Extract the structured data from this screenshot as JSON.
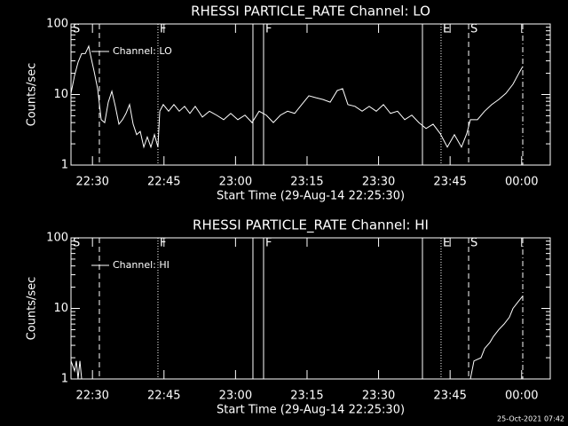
{
  "chart_data": [
    {
      "type": "line",
      "title": "RHESSI PARTICLE_RATE Channel: LO",
      "xlabel": "Start Time (29-Aug-14 22:25:30)",
      "ylabel": "Counts/sec",
      "log_y": true,
      "legend": "upper left",
      "x": [
        0,
        45,
        89,
        134,
        179,
        223,
        246,
        290,
        335,
        380,
        424,
        469,
        514,
        558,
        603,
        648,
        692,
        737,
        782,
        826,
        871,
        916,
        960,
        1005,
        1050,
        1094,
        1117,
        1161,
        1228,
        1295,
        1362,
        1429,
        1496,
        1563,
        1653,
        1742,
        1831,
        1921,
        2010,
        2099,
        2189,
        2278,
        2367,
        2457,
        2546,
        2635,
        2725,
        2814,
        2903,
        2993,
        3082,
        3171,
        3261,
        3350,
        3417,
        3484,
        3573,
        3663,
        3752,
        3841,
        3931,
        4020,
        4109,
        4199,
        4288,
        4377,
        4467,
        4556,
        4645,
        4735,
        4824,
        4913,
        4980,
        5025,
        5114,
        5204,
        5293,
        5382,
        5472,
        5561,
        5650,
        5684
      ],
      "series": [
        {
          "name": "Channel: LO",
          "color": "#ffffff",
          "values": [
            10.4,
            18.6,
            28.7,
            38,
            38,
            48.5,
            36,
            21.5,
            12.1,
            4.4,
            4.0,
            7.8,
            11.1,
            6.8,
            3.8,
            4.4,
            5.4,
            7.2,
            3.8,
            2.7,
            3.0,
            1.8,
            2.5,
            1.8,
            2.7,
            1.8,
            5.8,
            7.2,
            5.8,
            7.2,
            5.8,
            6.8,
            5.4,
            6.8,
            4.8,
            5.8,
            5.1,
            4.4,
            5.4,
            4.4,
            5.1,
            4.0,
            5.8,
            5.1,
            4.0,
            5.1,
            5.8,
            5.4,
            7.2,
            9.6,
            9.0,
            8.5,
            7.8,
            11.4,
            12.1,
            7.2,
            6.8,
            5.8,
            6.8,
            5.8,
            7.2,
            5.4,
            5.8,
            4.4,
            5.1,
            4.0,
            3.3,
            3.8,
            2.8,
            1.8,
            2.7,
            1.8,
            2.8,
            4.4,
            4.4,
            5.8,
            7.2,
            8.5,
            10.4,
            14.0,
            21.5,
            25
          ]
        }
      ],
      "xlim": [
        0,
        6030
      ],
      "ylim": [
        1,
        100
      ],
      "yticks": [
        1,
        10,
        100
      ],
      "xticks": [
        {
          "value": 270,
          "label": "22:30"
        },
        {
          "value": 1170,
          "label": "22:45"
        },
        {
          "value": 2070,
          "label": "23:00"
        },
        {
          "value": 2970,
          "label": "23:15"
        },
        {
          "value": 3870,
          "label": "23:30"
        },
        {
          "value": 4770,
          "label": "23:45"
        },
        {
          "value": 5670,
          "label": "00:00"
        }
      ],
      "markers": [
        {
          "x": 0,
          "label": "S",
          "style": "solid"
        },
        {
          "x": 357,
          "label": null,
          "style": "dashed"
        },
        {
          "x": 1094,
          "label": "F",
          "style": "dotted"
        },
        {
          "x": 2289,
          "label": null,
          "style": "solid"
        },
        {
          "x": 2423,
          "label": "F",
          "style": "solid"
        },
        {
          "x": 4422,
          "label": null,
          "style": "solid"
        },
        {
          "x": 4656,
          "label": "E",
          "style": "dotted"
        },
        {
          "x": 5003,
          "label": "S",
          "style": "dashed"
        },
        {
          "x": 5684,
          "label": null,
          "style": "dashdot"
        }
      ]
    },
    {
      "type": "line",
      "title": "RHESSI PARTICLE_RATE Channel: HI",
      "xlabel": "Start Time (29-Aug-14 22:25:30)",
      "ylabel": "Counts/sec",
      "log_y": true,
      "legend": "upper left",
      "x": [
        0,
        45,
        67,
        89,
        112,
        134,
        157,
        5025,
        5070,
        5159,
        5204,
        5271,
        5315,
        5382,
        5449,
        5516,
        5561,
        5628,
        5684
      ],
      "series": [
        {
          "name": "Channel: HI",
          "color": "#ffffff",
          "values": [
            1.8,
            1.3,
            1.8,
            1.0,
            1.8,
            1.0,
            null,
            1.0,
            1.8,
            2.0,
            2.7,
            3.3,
            4.0,
            5.0,
            6.0,
            7.5,
            10,
            12.5,
            15
          ]
        }
      ],
      "xlim": [
        0,
        6030
      ],
      "ylim": [
        1,
        100
      ],
      "yticks": [
        1,
        10,
        100
      ],
      "xticks": [
        {
          "value": 270,
          "label": "22:30"
        },
        {
          "value": 1170,
          "label": "22:45"
        },
        {
          "value": 2070,
          "label": "23:00"
        },
        {
          "value": 2970,
          "label": "23:15"
        },
        {
          "value": 3870,
          "label": "23:30"
        },
        {
          "value": 4770,
          "label": "23:45"
        },
        {
          "value": 5670,
          "label": "00:00"
        }
      ],
      "markers": [
        {
          "x": 0,
          "label": "S",
          "style": "solid"
        },
        {
          "x": 357,
          "label": null,
          "style": "dashed"
        },
        {
          "x": 1094,
          "label": "F",
          "style": "dotted"
        },
        {
          "x": 2289,
          "label": null,
          "style": "solid"
        },
        {
          "x": 2423,
          "label": "F",
          "style": "solid"
        },
        {
          "x": 4422,
          "label": null,
          "style": "solid"
        },
        {
          "x": 4656,
          "label": "E",
          "style": "dotted"
        },
        {
          "x": 5003,
          "label": "S",
          "style": "dashed"
        },
        {
          "x": 5684,
          "label": null,
          "style": "dashdot"
        }
      ]
    }
  ],
  "footer": "25-Oct-2021 07:42"
}
